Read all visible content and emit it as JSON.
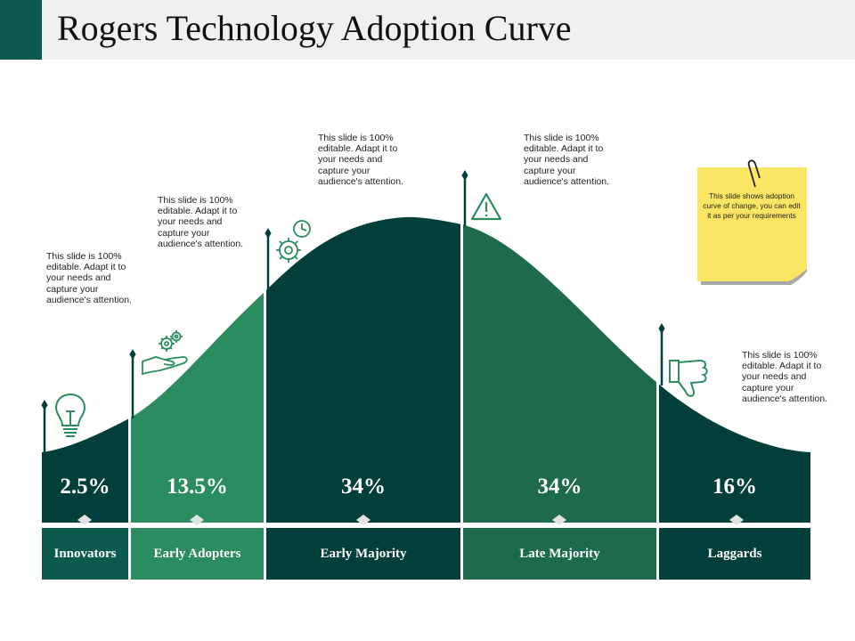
{
  "title": "Rogers Technology Adoption Curve",
  "colors": {
    "dark": "#033f3a",
    "mid": "#1d6a4c",
    "light": "#2a8c5f",
    "teal": "#0b5a4d",
    "note": "#fbe562"
  },
  "segments": [
    {
      "label": "Innovators",
      "percent": "2.5%",
      "description": "This slide is 100% editable. Adapt it to your needs and capture your audience's attention.",
      "icon": "lightbulb-icon"
    },
    {
      "label": "Early Adopters",
      "percent": "13.5%",
      "description": "This slide is 100% editable. Adapt it to your needs and capture your audience's attention.",
      "icon": "hand-gears-icon"
    },
    {
      "label": "Early Majority",
      "percent": "34%",
      "description": "This slide is 100% editable. Adapt it to your needs and capture your audience's attention.",
      "icon": "gear-clock-icon"
    },
    {
      "label": "Late Majority",
      "percent": "34%",
      "description": "This slide is 100% editable. Adapt it to your needs and capture your audience's attention.",
      "icon": "warning-icon"
    },
    {
      "label": "Laggards",
      "percent": "16%",
      "description": "This slide is 100% editable. Adapt it to your needs and capture your audience's attention.",
      "icon": "thumbs-down-icon"
    }
  ],
  "note": {
    "text": "This slide shows adoption curve of change, you can edit it as per your requirements",
    "icon": "paperclip-icon"
  }
}
